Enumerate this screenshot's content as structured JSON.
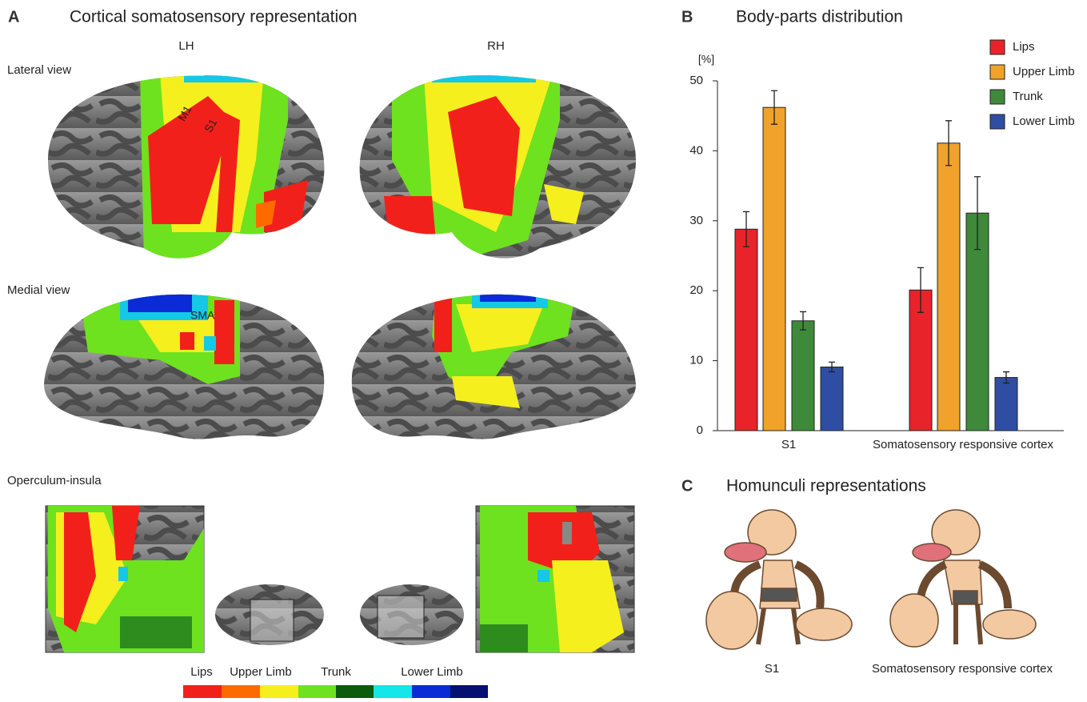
{
  "panel_a": {
    "letter": "A",
    "title": "Cortical somatosensory representation",
    "hemispheres": [
      "LH",
      "RH"
    ],
    "views": [
      "Lateral view",
      "Medial view",
      "Operculum-insula"
    ],
    "annotations": [
      "M1",
      "S1",
      "SMA"
    ],
    "colorbar_labels": [
      "Lips",
      "Upper Limb",
      "Trunk",
      "Lower Limb"
    ]
  },
  "panel_b": {
    "letter": "B"
  },
  "chart_data": {
    "type": "bar",
    "title": "Body-parts distribution",
    "y_label": "[%]",
    "categories": [
      "S1",
      "Somatosensory responsive cortex"
    ],
    "series": [
      {
        "name": "Lips",
        "color": "#e8242a",
        "values": [
          28.8,
          20.1
        ],
        "errors": [
          2.5,
          3.2
        ]
      },
      {
        "name": "Upper Limb",
        "color": "#f0a22a",
        "values": [
          46.2,
          41.1
        ],
        "errors": [
          2.4,
          3.2
        ]
      },
      {
        "name": "Trunk",
        "color": "#3e8a3a",
        "values": [
          15.7,
          31.1
        ],
        "errors": [
          1.3,
          5.2
        ]
      },
      {
        "name": "Lower Limb",
        "color": "#2f4ea3",
        "values": [
          9.1,
          7.6
        ],
        "errors": [
          0.7,
          0.8
        ]
      }
    ],
    "ylim": [
      0,
      50
    ],
    "yticks": [
      0,
      10,
      20,
      30,
      40,
      50
    ],
    "legend": "upper right"
  },
  "panel_c": {
    "letter": "C",
    "title": "Homunculi representations",
    "labels": [
      "S1",
      "Somatosensory responsive cortex"
    ]
  }
}
